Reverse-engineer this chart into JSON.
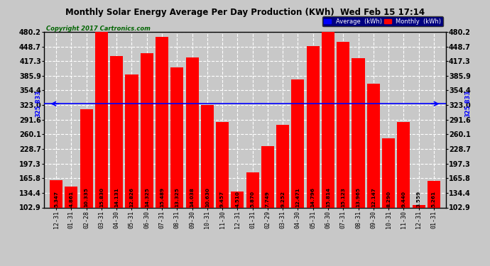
{
  "title": "Monthly Solar Energy Average Per Day Production (KWh)  Wed Feb 15 17:14",
  "copyright": "Copyright 2017 Cartronics.com",
  "categories": [
    "12-31",
    "01-31",
    "02-28",
    "03-31",
    "04-30",
    "05-31",
    "06-30",
    "07-31",
    "08-31",
    "09-30",
    "10-31",
    "11-30",
    "12-31",
    "01-31",
    "02-29",
    "03-31",
    "04-30",
    "05-31",
    "06-30",
    "07-31",
    "08-31",
    "09-30",
    "10-31",
    "11-30",
    "12-31",
    "01-31"
  ],
  "values": [
    5.347,
    4.861,
    10.335,
    15.83,
    14.131,
    12.826,
    14.325,
    15.489,
    13.325,
    14.038,
    10.63,
    9.457,
    4.51,
    5.87,
    7.749,
    9.252,
    12.471,
    14.796,
    15.814,
    15.123,
    13.965,
    12.147,
    8.29,
    9.44,
    3.559,
    5.261
  ],
  "average_raw": 10.735,
  "average_label": "325.833",
  "bar_color": "#ff0000",
  "avg_line_color": "#0000ff",
  "background_color": "#c8c8c8",
  "plot_bg_color": "#c8c8c8",
  "grid_color": "#aaaaaa",
  "text_color": "#000000",
  "scale": 30.3333,
  "ytick_raw": [
    3.393,
    4.429,
    5.464,
    6.5,
    7.536,
    8.571,
    9.607,
    10.643,
    11.679,
    12.714,
    13.75,
    14.786,
    15.821
  ],
  "ytick_labels": [
    "102.9",
    "134.4",
    "165.8",
    "197.3",
    "228.7",
    "260.1",
    "291.6",
    "323.0",
    "354.4",
    "385.9",
    "417.3",
    "448.7",
    "480.2"
  ],
  "ylim_raw_min": 3.393,
  "ylim_raw_max": 15.821,
  "legend_avg_color": "#0000ff",
  "legend_monthly_color": "#ff0000"
}
